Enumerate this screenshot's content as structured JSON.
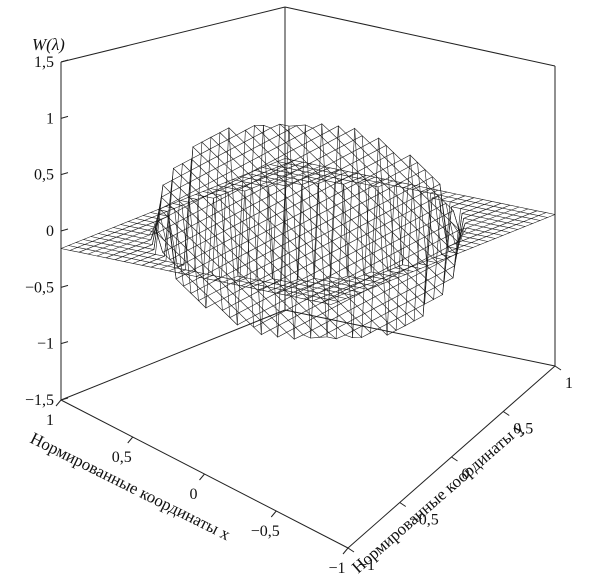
{
  "chart_data": {
    "type": "surface3d",
    "zlabel": "W(λ)",
    "xlabel": "Нормированные координаты x",
    "ylabel": "Нормированные координаты y",
    "xlim": [
      -1,
      1
    ],
    "ylim": [
      -1,
      1
    ],
    "zlim": [
      -1.5,
      1.5
    ],
    "z_ticks": [
      "1,5",
      "1",
      "0,5",
      "0",
      "−0,5",
      "−1",
      "−1,5"
    ],
    "x_ticks": [
      "1",
      "0,5",
      "0",
      "−0,5",
      "−1"
    ],
    "y_ticks": [
      "−1",
      "−0,5",
      "0",
      "0,5",
      "1"
    ],
    "aperture": "circle",
    "surface_peak": 1.5,
    "surface_trough": -1.5,
    "grid": true,
    "colors": {
      "line": "#1a1a1a",
      "background": "#ffffff"
    }
  }
}
